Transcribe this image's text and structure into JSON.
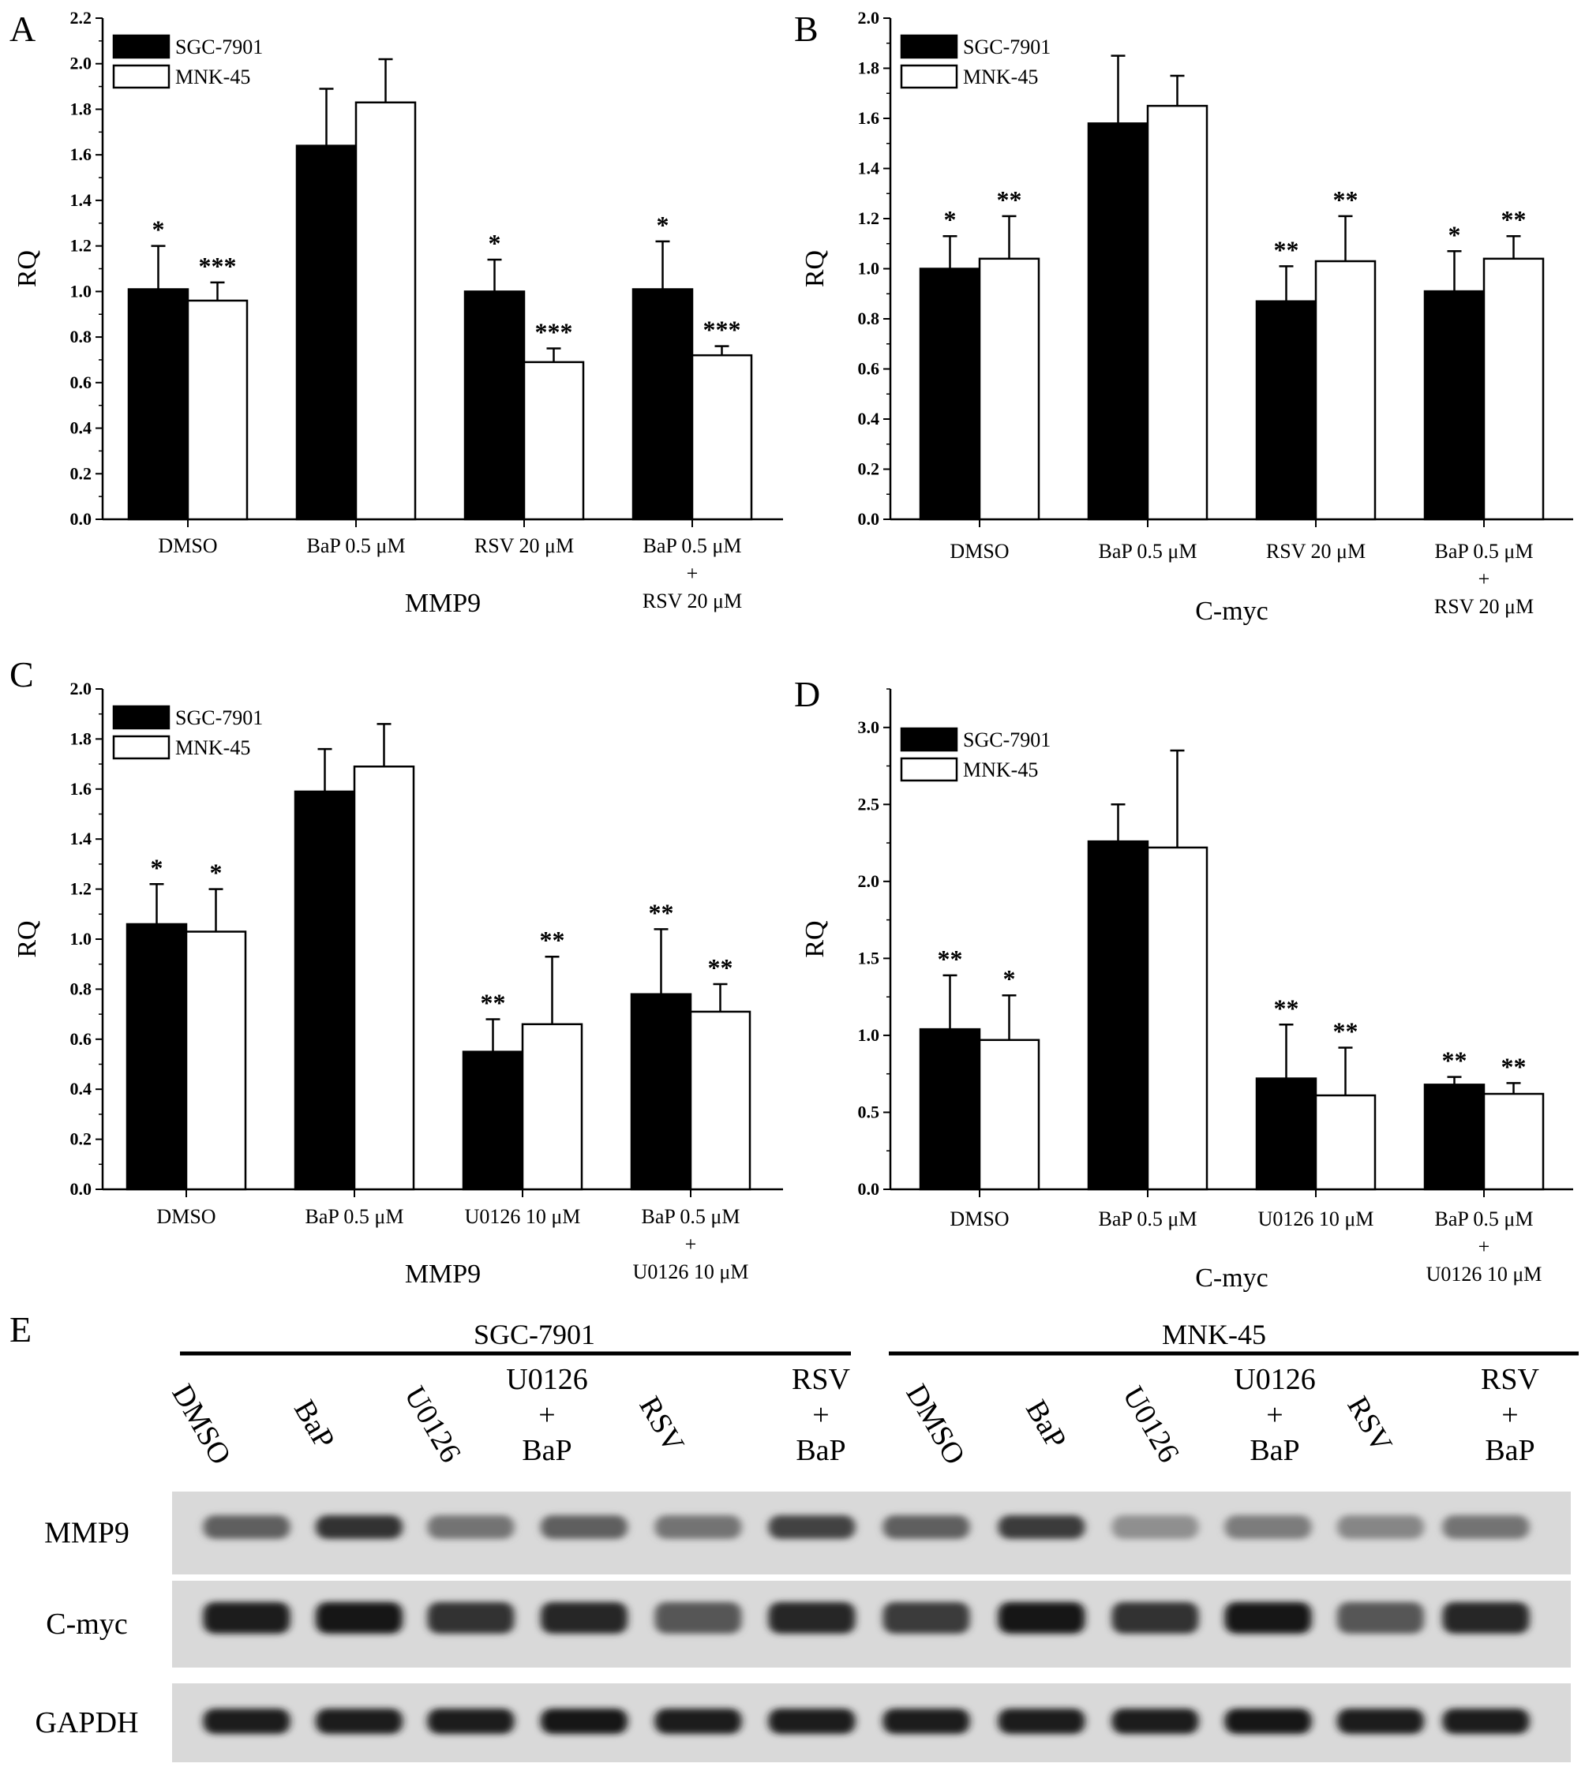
{
  "chart_data": [
    {
      "panel": "A",
      "type": "bar",
      "ylabel": "RQ",
      "xlabel": "MMP9",
      "ylim": [
        0,
        2.2
      ],
      "ytick_step": 0.2,
      "ytick_labels": [
        "0.0",
        "0.2",
        "0.4",
        "0.6",
        "0.8",
        "1.0",
        "1.2",
        "1.4",
        "1.6",
        "1.8",
        "2.0",
        "2.2"
      ],
      "categories": [
        [
          "DMSO"
        ],
        [
          "BaP 0.5 μM"
        ],
        [
          "RSV 20 μM"
        ],
        [
          "BaP 0.5 μM",
          "+",
          "RSV 20 μM"
        ]
      ],
      "series": [
        {
          "name": "SGC-7901",
          "color": "#000000",
          "values": [
            1.01,
            1.64,
            1.0,
            1.01
          ],
          "errors": [
            0.19,
            0.25,
            0.14,
            0.21
          ],
          "stars": [
            "*",
            "",
            "*",
            "*"
          ]
        },
        {
          "name": "MNK-45",
          "color": "#ffffff",
          "values": [
            0.96,
            1.83,
            0.69,
            0.72
          ],
          "errors": [
            0.08,
            0.19,
            0.06,
            0.04
          ],
          "stars": [
            "***",
            "",
            "***",
            "***"
          ]
        }
      ],
      "legend": "top-left"
    },
    {
      "panel": "B",
      "type": "bar",
      "ylabel": "RQ",
      "xlabel": "C-myc",
      "ylim": [
        0,
        2.0
      ],
      "ytick_step": 0.2,
      "ytick_labels": [
        "0.0",
        "0.2",
        "0.4",
        "0.6",
        "0.8",
        "1.0",
        "1.2",
        "1.4",
        "1.6",
        "1.8",
        "2.0"
      ],
      "categories": [
        [
          "DMSO"
        ],
        [
          "BaP 0.5 μM"
        ],
        [
          "RSV 20 μM"
        ],
        [
          "BaP 0.5 μM",
          "+",
          "RSV 20 μM"
        ]
      ],
      "series": [
        {
          "name": "SGC-7901",
          "color": "#000000",
          "values": [
            1.0,
            1.58,
            0.87,
            0.91
          ],
          "errors": [
            0.13,
            0.27,
            0.14,
            0.16
          ],
          "stars": [
            "*",
            "",
            "**",
            "*"
          ]
        },
        {
          "name": "MNK-45",
          "color": "#ffffff",
          "values": [
            1.04,
            1.65,
            1.03,
            1.04
          ],
          "errors": [
            0.17,
            0.12,
            0.18,
            0.09
          ],
          "stars": [
            "**",
            "",
            "**",
            "**"
          ]
        }
      ],
      "legend": "top-left"
    },
    {
      "panel": "C",
      "type": "bar",
      "ylabel": "RQ",
      "xlabel": "MMP9",
      "ylim": [
        0,
        2.0
      ],
      "ytick_step": 0.2,
      "ytick_labels": [
        "0.0",
        "0.2",
        "0.4",
        "0.6",
        "0.8",
        "1.0",
        "1.2",
        "1.4",
        "1.6",
        "1.8",
        "2.0"
      ],
      "categories": [
        [
          "DMSO"
        ],
        [
          "BaP 0.5 μM"
        ],
        [
          "U0126 10 μM"
        ],
        [
          "BaP 0.5 μM",
          "+",
          "U0126 10 μM"
        ]
      ],
      "series": [
        {
          "name": "SGC-7901",
          "color": "#000000",
          "values": [
            1.06,
            1.59,
            0.55,
            0.78
          ],
          "errors": [
            0.16,
            0.17,
            0.13,
            0.26
          ],
          "stars": [
            "*",
            "",
            "**",
            "**"
          ]
        },
        {
          "name": "MNK-45",
          "color": "#ffffff",
          "values": [
            1.03,
            1.69,
            0.66,
            0.71
          ],
          "errors": [
            0.17,
            0.17,
            0.27,
            0.11
          ],
          "stars": [
            "*",
            "",
            "**",
            "**"
          ]
        }
      ],
      "legend": "top-left"
    },
    {
      "panel": "D",
      "type": "bar",
      "ylabel": "RQ",
      "xlabel": "C-myc",
      "ylim": [
        0,
        3.25
      ],
      "ytick_step": 0.5,
      "ytick_labels": [
        "0.0",
        "0.5",
        "1.0",
        "1.5",
        "2.0",
        "2.5",
        "3.0"
      ],
      "categories": [
        [
          "DMSO"
        ],
        [
          "BaP 0.5 μM"
        ],
        [
          "U0126 10 μM"
        ],
        [
          "BaP 0.5 μM",
          "+",
          "U0126 10 μM"
        ]
      ],
      "series": [
        {
          "name": "SGC-7901",
          "color": "#000000",
          "values": [
            1.04,
            2.26,
            0.72,
            0.68
          ],
          "errors": [
            0.35,
            0.24,
            0.35,
            0.05
          ],
          "stars": [
            "**",
            "",
            "**",
            "**"
          ]
        },
        {
          "name": "MNK-45",
          "color": "#ffffff",
          "values": [
            0.97,
            2.22,
            0.61,
            0.62
          ],
          "errors": [
            0.29,
            0.63,
            0.31,
            0.07
          ],
          "stars": [
            "*",
            "",
            "**",
            "**"
          ]
        }
      ],
      "legend": "top-left"
    }
  ],
  "panel_letters": [
    "A",
    "B",
    "C",
    "D",
    "E"
  ],
  "blot": {
    "groups": [
      "SGC-7901",
      "MNK-45"
    ],
    "lanes": [
      [
        "DMSO"
      ],
      [
        "BaP"
      ],
      [
        "U0126"
      ],
      [
        "U0126",
        "+",
        "BaP"
      ],
      [
        "RSV"
      ],
      [
        "RSV",
        "+",
        "BaP"
      ],
      [
        "DMSO"
      ],
      [
        "BaP"
      ],
      [
        "U0126"
      ],
      [
        "U0126",
        "+",
        "BaP"
      ],
      [
        "RSV"
      ],
      [
        "RSV",
        "+",
        "BaP"
      ]
    ],
    "rows": [
      {
        "label": "MMP9",
        "intensities": [
          0.55,
          0.8,
          0.45,
          0.55,
          0.45,
          0.7,
          0.55,
          0.75,
          0.3,
          0.4,
          0.35,
          0.45
        ]
      },
      {
        "label": "C-myc",
        "intensities": [
          0.9,
          0.95,
          0.8,
          0.85,
          0.6,
          0.85,
          0.75,
          0.95,
          0.8,
          0.95,
          0.6,
          0.85
        ]
      },
      {
        "label": "GAPDH",
        "intensities": [
          0.9,
          0.9,
          0.9,
          0.95,
          0.9,
          0.9,
          0.9,
          0.9,
          0.9,
          0.95,
          0.9,
          0.9
        ]
      }
    ]
  }
}
